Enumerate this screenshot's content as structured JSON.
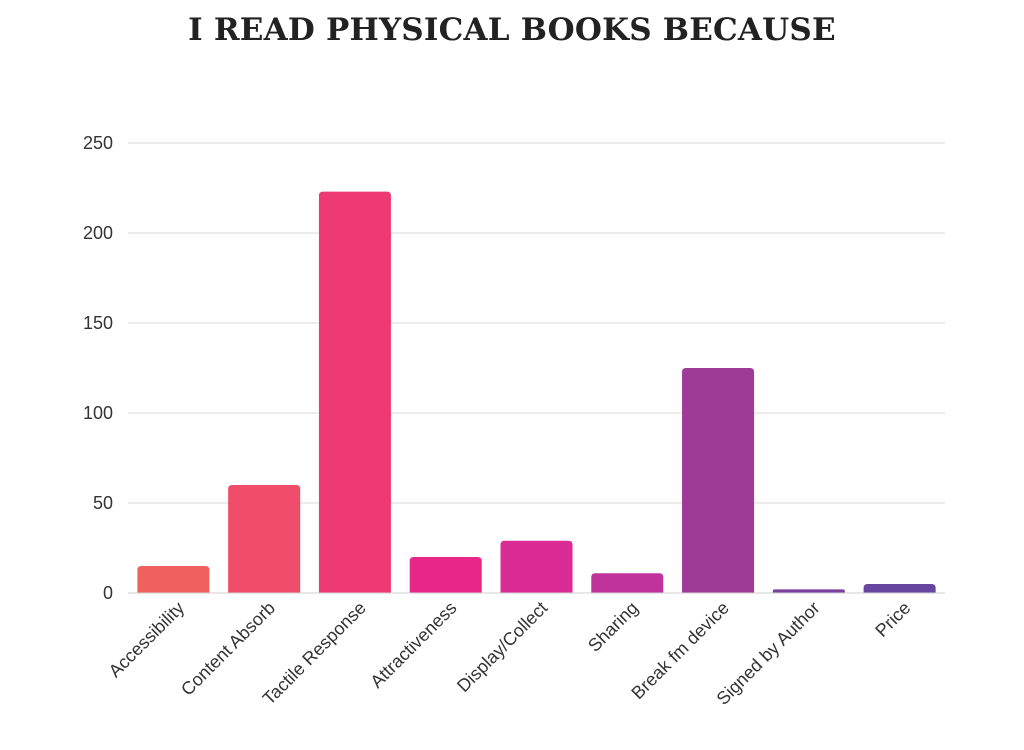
{
  "chart_data": {
    "type": "bar",
    "title": "I READ PHYSICAL BOOKS BECAUSE",
    "xlabel": "",
    "ylabel": "",
    "categories": [
      "Accessibility",
      "Content Absorb",
      "Tactile Response",
      "Attractiveness",
      "Display/Collect",
      "Sharing",
      "Break fm device",
      "Signed by Author",
      "Price"
    ],
    "values": [
      15,
      60,
      223,
      20,
      29,
      11,
      125,
      2,
      5
    ],
    "bar_colors": [
      "#F0605D",
      "#EF4D6A",
      "#EE3A72",
      "#E8278B",
      "#DB2C96",
      "#C0339A",
      "#9D3B96",
      "#7A3E9C",
      "#6746A0"
    ],
    "ylim": [
      0,
      250
    ],
    "yticks": [
      0,
      50,
      100,
      150,
      200,
      250
    ],
    "grid": true,
    "legend": "none"
  }
}
